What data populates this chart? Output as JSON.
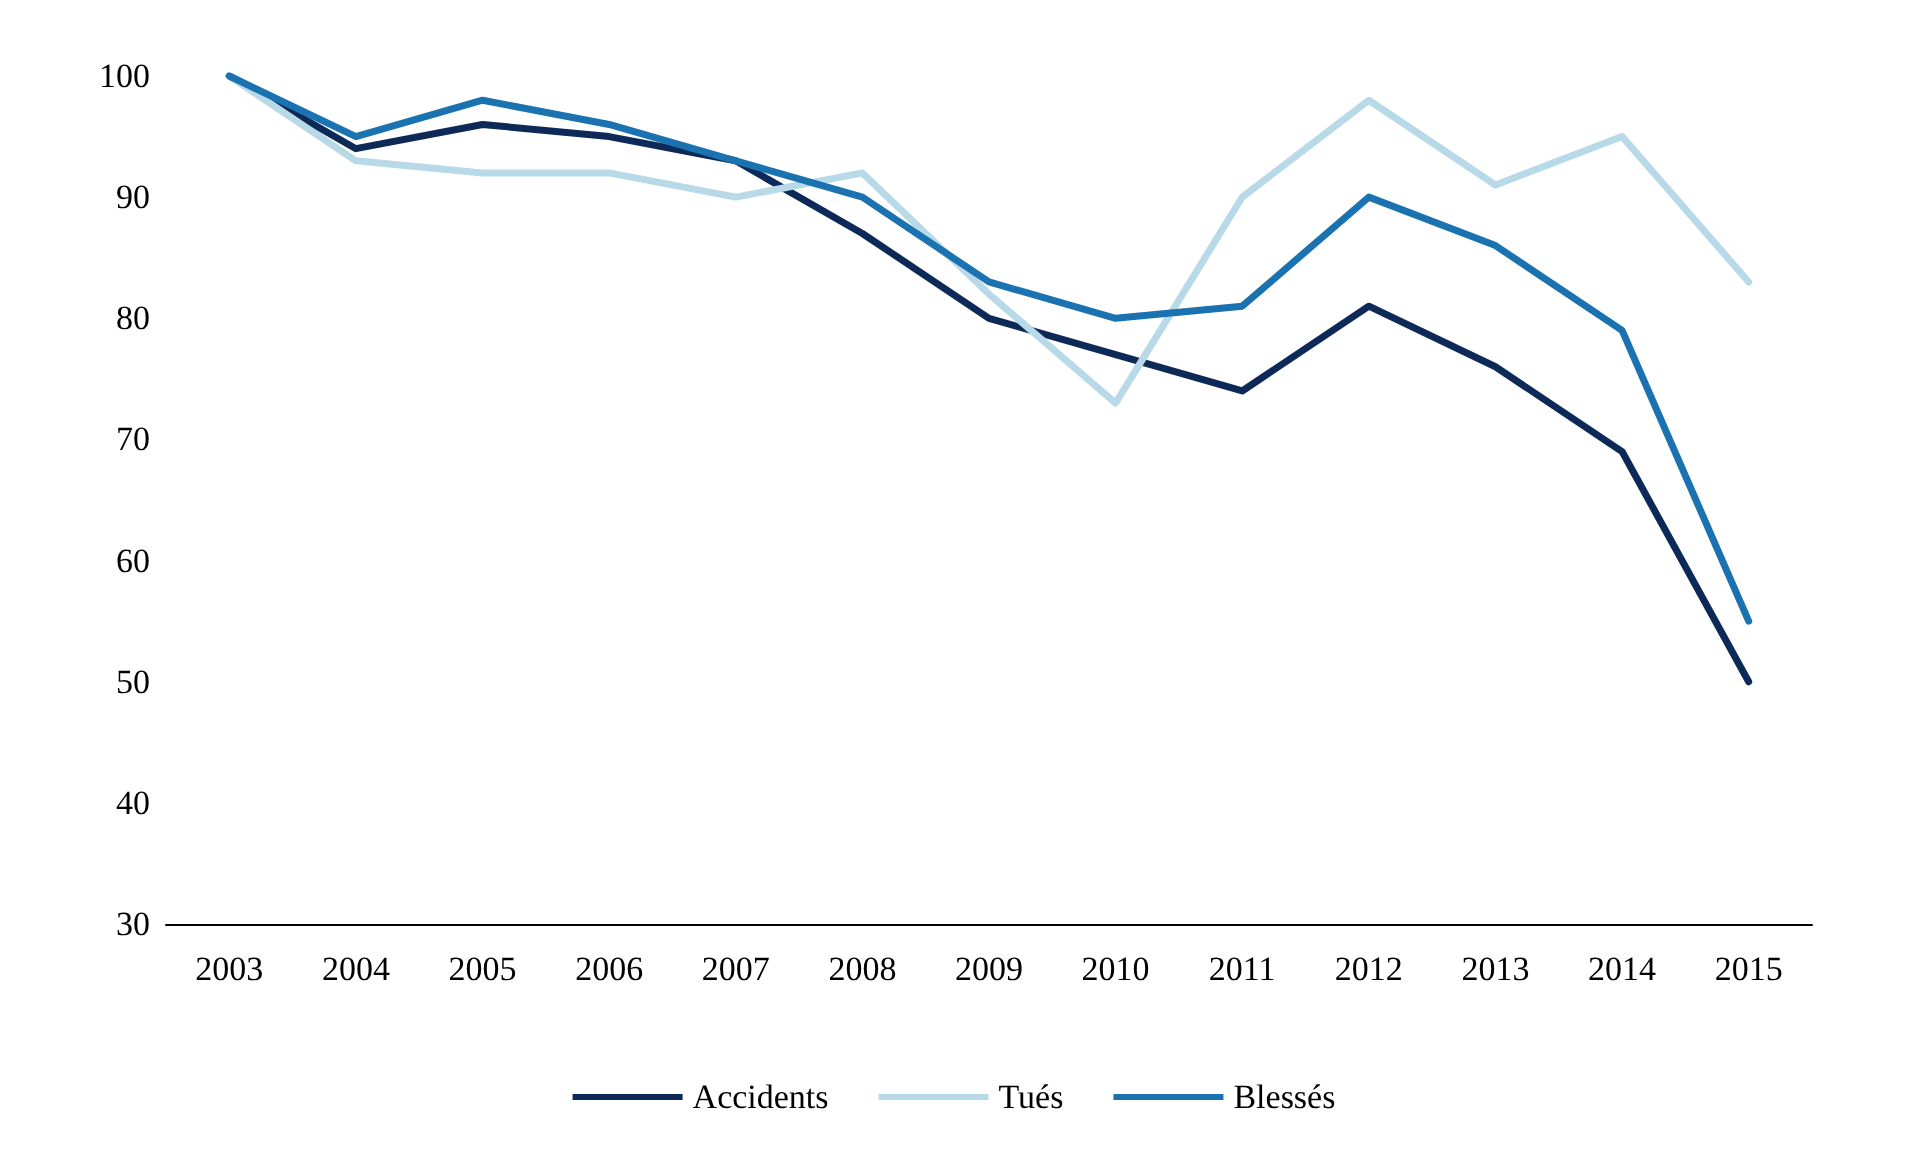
{
  "chart_data": {
    "type": "line",
    "categories": [
      "2003",
      "2004",
      "2005",
      "2006",
      "2007",
      "2008",
      "2009",
      "2010",
      "2011",
      "2012",
      "2013",
      "2014",
      "2015"
    ],
    "series": [
      {
        "name": "Accidents",
        "color": "#0c2957",
        "values": [
          100,
          94,
          96,
          95,
          93,
          87,
          80,
          77,
          74,
          81,
          76,
          69,
          50
        ]
      },
      {
        "name": "Tués",
        "color": "#b7d9e8",
        "values": [
          100,
          93,
          92,
          92,
          90,
          92,
          82,
          73,
          90,
          98,
          91,
          95,
          83
        ]
      },
      {
        "name": "Blessés",
        "color": "#1b72b1",
        "values": [
          100,
          95,
          98,
          96,
          93,
          90,
          83,
          80,
          81,
          90,
          86,
          79,
          55
        ]
      }
    ],
    "ylim": [
      30,
      100
    ],
    "yticks": [
      30,
      40,
      50,
      60,
      70,
      80,
      90,
      100
    ],
    "grid": false,
    "legend": "bottom",
    "marker": "none",
    "line_style": "solid"
  }
}
